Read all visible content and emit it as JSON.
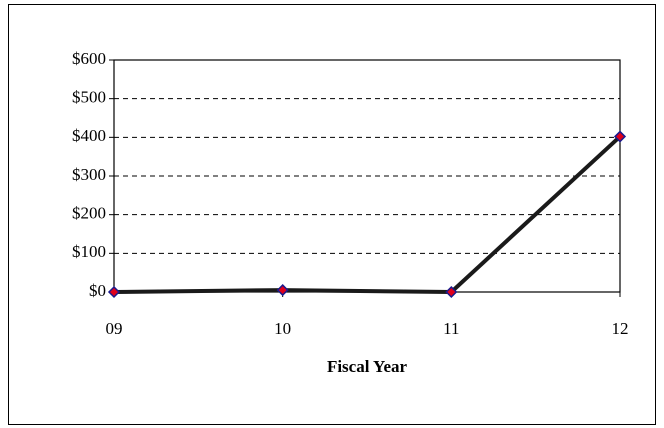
{
  "chart_data": {
    "type": "line",
    "x_label": "Fiscal Year",
    "categories": [
      "09",
      "10",
      "11",
      "12"
    ],
    "series": [
      {
        "color": "#1a1a1a",
        "marker_color": "#e0001b",
        "marker_edge": "#1a1a8c",
        "values": [
          0,
          5,
          0,
          402
        ]
      }
    ],
    "ylim": [
      0,
      600
    ],
    "yticks": [
      {
        "value": 0,
        "label": "$0"
      },
      {
        "value": 100,
        "label": "$100"
      },
      {
        "value": 200,
        "label": "$200"
      },
      {
        "value": 300,
        "label": "$300"
      },
      {
        "value": 400,
        "label": "$400"
      },
      {
        "value": 500,
        "label": "$500"
      },
      {
        "value": 600,
        "label": "$600"
      }
    ],
    "grid": true
  }
}
